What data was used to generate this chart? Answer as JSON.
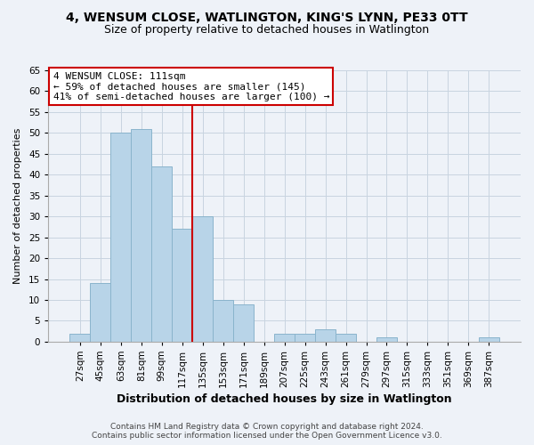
{
  "title": "4, WENSUM CLOSE, WATLINGTON, KING'S LYNN, PE33 0TT",
  "subtitle": "Size of property relative to detached houses in Watlington",
  "xlabel": "Distribution of detached houses by size in Watlington",
  "ylabel": "Number of detached properties",
  "footer1": "Contains HM Land Registry data © Crown copyright and database right 2024.",
  "footer2": "Contains public sector information licensed under the Open Government Licence v3.0.",
  "bin_labels": [
    "27sqm",
    "45sqm",
    "63sqm",
    "81sqm",
    "99sqm",
    "117sqm",
    "135sqm",
    "153sqm",
    "171sqm",
    "189sqm",
    "207sqm",
    "225sqm",
    "243sqm",
    "261sqm",
    "279sqm",
    "297sqm",
    "315sqm",
    "333sqm",
    "351sqm",
    "369sqm",
    "387sqm"
  ],
  "values": [
    2,
    14,
    50,
    51,
    42,
    27,
    30,
    10,
    9,
    0,
    2,
    2,
    3,
    2,
    0,
    1,
    0,
    0,
    0,
    0,
    1
  ],
  "bar_color": "#b8d4e8",
  "bar_edge_color": "#8ab4cc",
  "property_line_color": "#cc0000",
  "property_line_index": 5.5,
  "annotation_title": "4 WENSUM CLOSE: 111sqm",
  "annotation_line1": "← 59% of detached houses are smaller (145)",
  "annotation_line2": "41% of semi-detached houses are larger (100) →",
  "annotation_box_facecolor": "white",
  "annotation_box_edgecolor": "#cc0000",
  "ylim": [
    0,
    65
  ],
  "yticks": [
    0,
    5,
    10,
    15,
    20,
    25,
    30,
    35,
    40,
    45,
    50,
    55,
    60,
    65
  ],
  "grid_color": "#c8d4e0",
  "bg_color": "#eef2f8",
  "title_fontsize": 10,
  "subtitle_fontsize": 9,
  "xlabel_fontsize": 9,
  "ylabel_fontsize": 8,
  "tick_fontsize": 7.5,
  "footer_fontsize": 6.5,
  "annot_fontsize": 8
}
